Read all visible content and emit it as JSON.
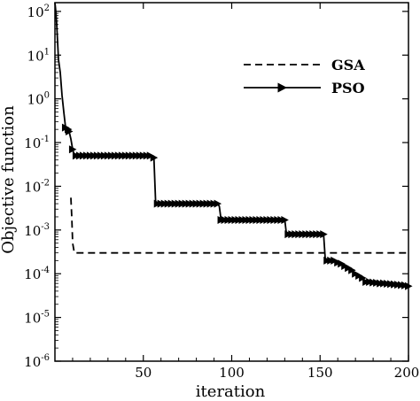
{
  "chart_data": {
    "type": "line",
    "title": "",
    "xlabel": "iteration",
    "ylabel": "Objective function",
    "xlim": [
      0,
      200
    ],
    "ylim_log10": [
      -6,
      2.2
    ],
    "y_scale": "log",
    "x_ticks": [
      50,
      100,
      150,
      200
    ],
    "x_tick_labels": [
      "50",
      "100",
      "150",
      "200"
    ],
    "y_ticks_exp": [
      -6,
      -5,
      -4,
      -3,
      -2,
      -1,
      0,
      1,
      2
    ],
    "y_tick_base": "10",
    "y_tick_exponents": [
      "-6",
      "-5",
      "-4",
      "-3",
      "-2",
      "-1",
      "0",
      "1",
      "2"
    ],
    "grid": false,
    "legend_position": "top-right",
    "series": [
      {
        "name": "GSA",
        "style": "dashed",
        "color": "#000000",
        "x": [
          9,
          9.5,
          10,
          11,
          200
        ],
        "y": [
          0.0055,
          0.002,
          0.0005,
          0.0003,
          0.0003
        ]
      },
      {
        "name": "PSO",
        "style": "solid",
        "marker": "triangle-right",
        "color": "#000000",
        "x": [
          0,
          0.5,
          1,
          1.5,
          2,
          3,
          4,
          5,
          6,
          7,
          7.5,
          8,
          9,
          10,
          11,
          12,
          13,
          14,
          15,
          16,
          17,
          18,
          19,
          20,
          22,
          24,
          26,
          28,
          30,
          32,
          34,
          36,
          38,
          40,
          42,
          44,
          46,
          48,
          50,
          52,
          54,
          56,
          57,
          58,
          60,
          62,
          64,
          66,
          68,
          70,
          72,
          74,
          76,
          78,
          80,
          82,
          84,
          86,
          88,
          90,
          92,
          93,
          94,
          96,
          98,
          100,
          102,
          104,
          106,
          108,
          110,
          112,
          114,
          116,
          118,
          120,
          122,
          124,
          126,
          128,
          130,
          131,
          132,
          134,
          136,
          138,
          140,
          142,
          144,
          146,
          148,
          150,
          152,
          153,
          154,
          156,
          158,
          160,
          162,
          164,
          165,
          166,
          168,
          170,
          172,
          174,
          175,
          176,
          178,
          180,
          182,
          184,
          186,
          188,
          190,
          192,
          194,
          196,
          198,
          200
        ],
        "y": [
          160,
          100,
          50,
          20,
          8,
          4,
          1.2,
          0.5,
          0.22,
          0.2,
          0.2,
          0.18,
          0.12,
          0.07,
          0.05,
          0.05,
          0.05,
          0.05,
          0.05,
          0.05,
          0.05,
          0.05,
          0.05,
          0.05,
          0.05,
          0.05,
          0.05,
          0.05,
          0.05,
          0.05,
          0.05,
          0.05,
          0.05,
          0.05,
          0.05,
          0.05,
          0.05,
          0.05,
          0.05,
          0.05,
          0.05,
          0.045,
          0.004,
          0.004,
          0.004,
          0.004,
          0.004,
          0.004,
          0.004,
          0.004,
          0.004,
          0.004,
          0.004,
          0.004,
          0.004,
          0.004,
          0.004,
          0.004,
          0.004,
          0.004,
          0.004,
          0.0035,
          0.0017,
          0.0017,
          0.0017,
          0.0017,
          0.0017,
          0.0017,
          0.0017,
          0.0017,
          0.0017,
          0.0017,
          0.0017,
          0.0017,
          0.0017,
          0.0017,
          0.0017,
          0.0017,
          0.0017,
          0.0017,
          0.0017,
          0.0008,
          0.0008,
          0.0008,
          0.0008,
          0.0008,
          0.0008,
          0.0008,
          0.0008,
          0.0008,
          0.0008,
          0.0008,
          0.0008,
          0.0002,
          0.0002,
          0.0002,
          0.0002,
          0.00018,
          0.00017,
          0.00015,
          0.00015,
          0.000135,
          0.00012,
          0.0001,
          9e-05,
          8e-05,
          7e-05,
          6.5e-05,
          6.5e-05,
          6.3e-05,
          6.2e-05,
          6e-05,
          6e-05,
          5.9e-05,
          5.8e-05,
          5.7e-05,
          5.6e-05,
          5.5e-05,
          5.4e-05,
          5.2e-05
        ]
      }
    ]
  }
}
